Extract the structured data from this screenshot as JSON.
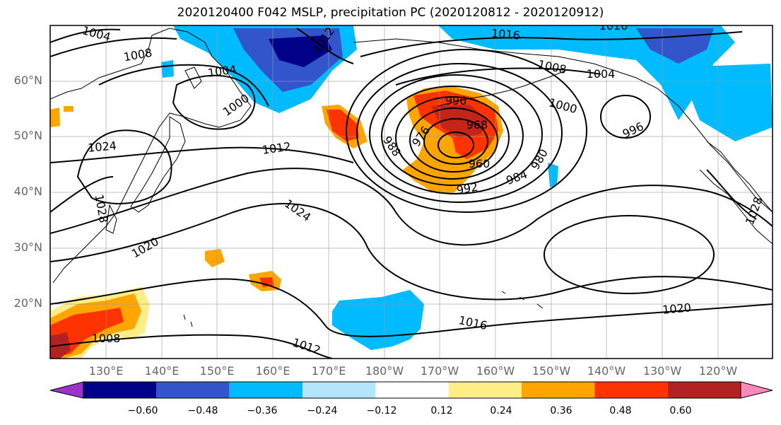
{
  "title": "2020120400 F042 MSLP, precipitation PC (2020120812 - 2020120912)",
  "lat_labels": [
    "60°N",
    "50°N",
    "40°N",
    "30°N",
    "20°N"
  ],
  "lon_labels": [
    "130°E",
    "140°E",
    "150°E",
    "160°E",
    "170°E",
    "180°W",
    "170°W",
    "160°W",
    "150°W",
    "140°W",
    "130°W",
    "120°W"
  ],
  "contour_labels": [
    "1004",
    "1008",
    "1012",
    "1016",
    "1004",
    "1000",
    "1008",
    "1004",
    "1016",
    "996",
    "1000",
    "968",
    "996",
    "976",
    "988",
    "960",
    "984",
    "980",
    "992",
    "1024",
    "1012",
    "1024",
    "1020",
    "1028",
    "1016",
    "1020",
    "1012",
    "1008",
    "1028"
  ],
  "colorbar": {
    "colors": [
      "#9933cc",
      "#000088",
      "#3355cc",
      "#00bbff",
      "#b3e5fc",
      "#ffffff",
      "#ffee88",
      "#ffa500",
      "#ff3300",
      "#b22222",
      "#ff88bb"
    ],
    "ticks": [
      "−0.60",
      "−0.48",
      "−0.36",
      "−0.24",
      "−0.12",
      "0.12",
      "0.24",
      "0.36",
      "0.48",
      "0.60"
    ]
  }
}
